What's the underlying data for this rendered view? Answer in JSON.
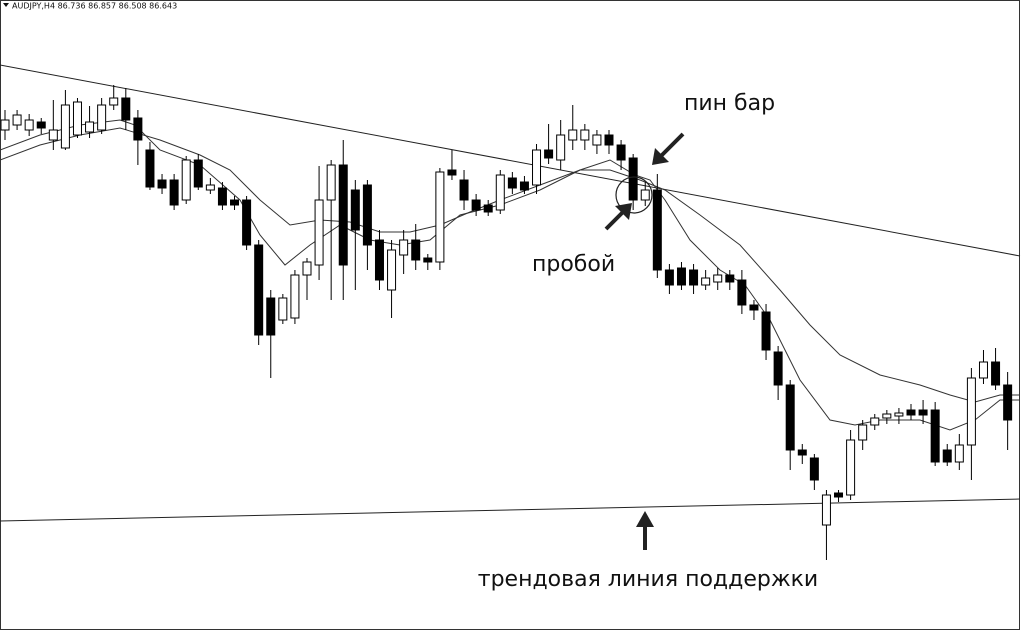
{
  "chart_data": {
    "type": "candlestick",
    "header": "AUDJPY,H4 86.736 86.857 86.508 86.643",
    "annotations": [
      "пин бар",
      "пробой",
      "трендовая линия поддержки"
    ],
    "ylim": [
      0,
      634
    ],
    "up_color": "#ffffff",
    "down_color": "#000000",
    "open": [
      504,
      509,
      504,
      512,
      494,
      486,
      499,
      502,
      504,
      529,
      536,
      516,
      484,
      454,
      454,
      434,
      474,
      444,
      446,
      434,
      434,
      389,
      336,
      314,
      316,
      359,
      369,
      434,
      469,
      444,
      449,
      394,
      344,
      379,
      394,
      376,
      372,
      464,
      454,
      434,
      429,
      424,
      456,
      452,
      449,
      484,
      474,
      494,
      494,
      489,
      499,
      489,
      476,
      434,
      444,
      364,
      366,
      364,
      349,
      352,
      359,
      354,
      329,
      322,
      282,
      249,
      184,
      176,
      109,
      141,
      139,
      194,
      209,
      216,
      218,
      224,
      224,
      224,
      184,
      172,
      189,
      256,
      272,
      249
    ],
    "high": [
      524,
      524,
      520,
      516,
      534,
      544,
      536,
      528,
      536,
      549,
      546,
      524,
      492,
      460,
      460,
      478,
      480,
      456,
      452,
      438,
      438,
      394,
      344,
      340,
      364,
      376,
      468,
      474,
      494,
      454,
      454,
      404,
      394,
      404,
      410,
      380,
      466,
      484,
      464,
      440,
      434,
      464,
      462,
      458,
      490,
      510,
      514,
      529,
      510,
      504,
      504,
      494,
      480,
      452,
      460,
      370,
      372,
      370,
      364,
      366,
      364,
      364,
      334,
      330,
      288,
      254,
      190,
      180,
      144,
      144,
      204,
      214,
      220,
      224,
      226,
      230,
      234,
      232,
      190,
      200,
      266,
      284,
      286,
      262
    ],
    "low": [
      494,
      504,
      498,
      500,
      484,
      484,
      496,
      496,
      500,
      524,
      504,
      469,
      444,
      440,
      424,
      430,
      444,
      440,
      424,
      424,
      384,
      289,
      256,
      310,
      310,
      334,
      354,
      334,
      334,
      344,
      364,
      344,
      316,
      360,
      364,
      364,
      364,
      454,
      424,
      418,
      418,
      420,
      440,
      440,
      440,
      470,
      464,
      484,
      484,
      480,
      480,
      464,
      424,
      428,
      356,
      340,
      344,
      340,
      344,
      344,
      344,
      320,
      314,
      274,
      234,
      164,
      170,
      144,
      74,
      132,
      134,
      184,
      204,
      210,
      210,
      214,
      210,
      168,
      168,
      164,
      154,
      250,
      244,
      184
    ],
    "close": [
      514,
      519,
      514,
      506,
      504,
      529,
      532,
      512,
      529,
      536,
      514,
      494,
      447,
      446,
      429,
      474,
      447,
      449,
      429,
      429,
      389,
      299,
      299,
      336,
      359,
      372,
      434,
      469,
      369,
      404,
      389,
      354,
      384,
      394,
      374,
      372,
      462,
      459,
      434,
      424,
      422,
      459,
      446,
      444,
      484,
      476,
      499,
      504,
      504,
      499,
      489,
      474,
      434,
      444,
      364,
      349,
      349,
      349,
      356,
      359,
      352,
      329,
      324,
      284,
      249,
      184,
      179,
      154,
      139,
      137,
      194,
      209,
      216,
      220,
      221,
      219,
      219,
      172,
      172,
      189,
      256,
      272,
      249,
      214
    ]
  }
}
